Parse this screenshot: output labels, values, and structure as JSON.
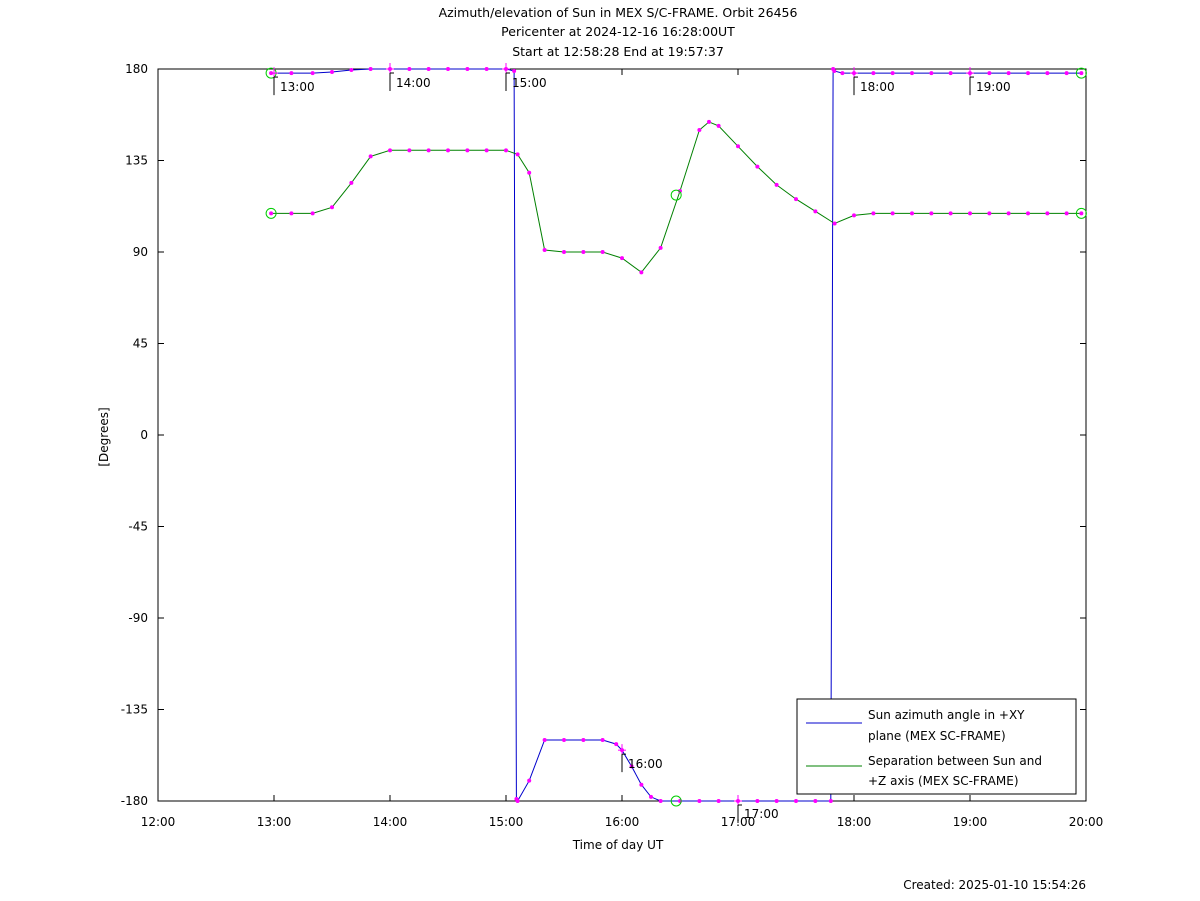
{
  "chart_data": {
    "type": "line",
    "title": "Azimuth/elevation of Sun in MEX S/C-FRAME.  Orbit 26456",
    "subtitle_1": "Pericenter at 2024-12-16 16:28:00UT",
    "subtitle_2": "Start at 12:58:28 End at 19:57:37",
    "xlabel": "Time of day UT",
    "ylabel": "[Degrees]",
    "xlim": [
      12,
      20
    ],
    "ylim": [
      -180,
      180
    ],
    "x_ticks": [
      {
        "v": 12,
        "label": "12:00"
      },
      {
        "v": 13,
        "label": "13:00"
      },
      {
        "v": 14,
        "label": "14:00"
      },
      {
        "v": 15,
        "label": "15:00"
      },
      {
        "v": 16,
        "label": "16:00"
      },
      {
        "v": 17,
        "label": "17:00"
      },
      {
        "v": 18,
        "label": "18:00"
      },
      {
        "v": 19,
        "label": "19:00"
      },
      {
        "v": 20,
        "label": "20:00"
      }
    ],
    "y_ticks": [
      {
        "v": 180,
        "label": "180"
      },
      {
        "v": 135,
        "label": "135"
      },
      {
        "v": 90,
        "label": "90"
      },
      {
        "v": 45,
        "label": "45"
      },
      {
        "v": 0,
        "label": "0"
      },
      {
        "v": -45,
        "label": "-45"
      },
      {
        "v": -90,
        "label": "-90"
      },
      {
        "v": -135,
        "label": "-135"
      },
      {
        "v": -180,
        "label": "-180"
      }
    ],
    "grid": false,
    "legend_position": "bottom-right",
    "series": [
      {
        "name": "Sun azimuth angle in +XY plane (MEX SC-FRAME)",
        "legend_line1": "Sun azimuth angle in +XY",
        "legend_line2": "plane (MEX SC-FRAME)",
        "color": "#0000cc",
        "x": [
          12.975,
          13.15,
          13.333,
          13.5,
          13.667,
          13.833,
          14.0,
          14.167,
          14.333,
          14.5,
          14.667,
          14.833,
          15.0,
          15.07,
          15.08,
          15.09,
          15.1,
          15.2,
          15.333,
          15.5,
          15.667,
          15.833,
          15.95,
          16.0,
          16.083,
          16.167,
          16.25,
          16.333,
          16.5,
          16.667,
          16.833,
          17.0,
          17.167,
          17.333,
          17.5,
          17.667,
          17.8,
          17.81,
          17.82,
          17.83,
          17.9,
          18.0,
          18.167,
          18.333,
          18.5,
          18.667,
          18.833,
          19.0,
          19.167,
          19.333,
          19.5,
          19.667,
          19.833,
          19.96
        ],
        "y": [
          178,
          178,
          178,
          178.5,
          179.5,
          180,
          180,
          180,
          180,
          180,
          180,
          180,
          180,
          179,
          0,
          -179,
          -180,
          -170,
          -150,
          -150,
          -150,
          -150,
          -152,
          -155,
          -163,
          -172,
          -178,
          -180,
          -180,
          -180,
          -180,
          -180,
          -180,
          -180,
          -180,
          -180,
          -180,
          0,
          180,
          179,
          178,
          178,
          178,
          178,
          178,
          178,
          178,
          178,
          178,
          178,
          178,
          178,
          178,
          178
        ]
      },
      {
        "name": "Separation between Sun and +Z axis (MEX SC-FRAME)",
        "legend_line1": "Separation between Sun and",
        "legend_line2": "+Z axis (MEX SC-FRAME)",
        "color": "#008000",
        "x": [
          12.975,
          13.15,
          13.333,
          13.5,
          13.667,
          13.833,
          14.0,
          14.167,
          14.333,
          14.5,
          14.667,
          14.833,
          15.0,
          15.1,
          15.2,
          15.333,
          15.5,
          15.667,
          15.833,
          16.0,
          16.167,
          16.333,
          16.5,
          16.667,
          16.75,
          16.833,
          17.0,
          17.167,
          17.333,
          17.5,
          17.667,
          17.833,
          18.0,
          18.167,
          18.333,
          18.5,
          18.667,
          18.833,
          19.0,
          19.167,
          19.333,
          19.5,
          19.667,
          19.833,
          19.96
        ],
        "y": [
          109,
          109,
          109,
          112,
          124,
          137,
          140,
          140,
          140,
          140,
          140,
          140,
          140,
          138,
          129,
          91,
          90,
          90,
          90,
          87,
          80,
          92,
          120,
          150,
          154,
          152,
          142,
          132,
          123,
          116,
          110,
          104,
          108,
          109,
          109,
          109,
          109,
          109,
          109,
          109,
          109,
          109,
          109,
          109,
          109
        ]
      }
    ],
    "time_annotations": [
      {
        "x": 13.0,
        "y": 178,
        "label": "13:00"
      },
      {
        "x": 14.0,
        "y": 180,
        "label": "14:00"
      },
      {
        "x": 15.0,
        "y": 180,
        "label": "15:00"
      },
      {
        "x": 16.0,
        "y": -155,
        "label": "16:00"
      },
      {
        "x": 17.0,
        "y": -180,
        "label": "17:00"
      },
      {
        "x": 18.0,
        "y": 178,
        "label": "18:00"
      },
      {
        "x": 19.0,
        "y": 178,
        "label": "19:00"
      }
    ],
    "start_end_markers": [
      {
        "x": 12.975,
        "y": 178
      },
      {
        "x": 19.96,
        "y": 178
      },
      {
        "x": 12.975,
        "y": 109
      },
      {
        "x": 19.96,
        "y": 109
      }
    ],
    "pericenter_markers": [
      {
        "x": 16.467,
        "y": 118
      },
      {
        "x": 16.467,
        "y": -180
      }
    ],
    "created": "Created: 2025-01-10 15:54:26"
  }
}
